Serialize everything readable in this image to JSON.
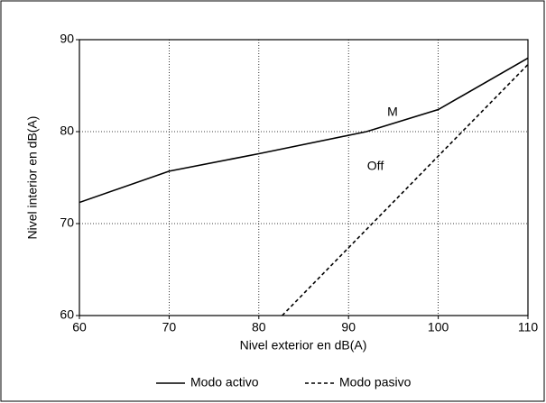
{
  "chart_data": {
    "type": "line",
    "x_label": "Nivel exterior en dB(A)",
    "y_label": "Nivel interior en dB(A)",
    "xlim": [
      60,
      110
    ],
    "xticks": [
      60,
      70,
      80,
      90,
      100,
      110
    ],
    "ylim": [
      60,
      90
    ],
    "yticks": [
      60,
      70,
      80,
      90
    ],
    "grid": true,
    "legend": "bottom",
    "series": [
      {
        "name": "Modo activo",
        "color": "#000000",
        "style": "solid",
        "x": [
          60,
          70,
          80,
          92,
          100,
          110
        ],
        "values": [
          72.3,
          75.7,
          77.6,
          80,
          82.4,
          88
        ]
      },
      {
        "name": "Modo pasivo",
        "color": "#000000",
        "style": "dashed",
        "x": [
          82.6,
          110
        ],
        "values": [
          60,
          87.3
        ]
      }
    ],
    "annotations": [
      {
        "text": "M",
        "x": 94.9,
        "y": 82.1
      },
      {
        "text": "Off",
        "x": 93,
        "y": 76.2
      }
    ]
  }
}
